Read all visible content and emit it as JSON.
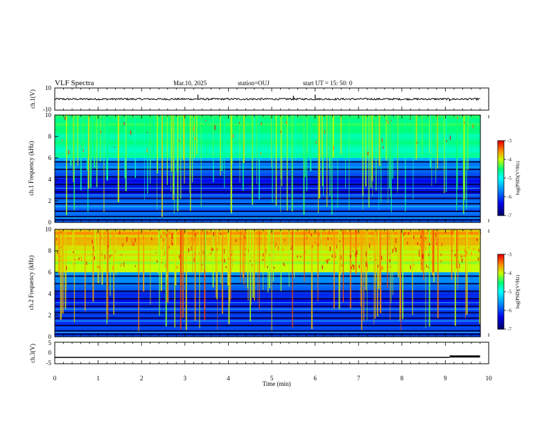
{
  "header": {
    "title": "VLF Spectra",
    "date": "Mar.10, 2025",
    "station": "station=OUJ",
    "start": "start UT =  15: 50: 0"
  },
  "chart_data": [
    {
      "type": "line",
      "panel": "ch.1 waveform",
      "ylabel": "ch.1(V)",
      "ylim": [
        -10,
        10
      ],
      "yticks": [
        "10",
        "-10"
      ],
      "xlim": [
        0,
        10
      ],
      "baseline": 0,
      "spikes": [
        {
          "x": 3.3,
          "y": 4
        },
        {
          "x": 5.5,
          "y": 3
        },
        {
          "x": 6.0,
          "y": 4
        },
        {
          "x": 9.1,
          "y": -2
        }
      ]
    },
    {
      "type": "heatmap",
      "panel": "ch.1 spectrogram",
      "ylabel": "ch.1 Frequency (kHz)",
      "ylim": [
        0,
        10
      ],
      "yticks": [
        "0",
        "2",
        "4",
        "6",
        "8",
        "10"
      ],
      "xlim": [
        0,
        10
      ],
      "colorbar": {
        "label": "log(PSD)(V²/Hz)",
        "range": [
          -7,
          -3
        ],
        "ticks": [
          "-3",
          "-4",
          "-5",
          "-6",
          "-7"
        ]
      }
    },
    {
      "type": "heatmap",
      "panel": "ch.2 spectrogram",
      "ylabel": "ch.2 Frequency (kHz)",
      "ylim": [
        0,
        10
      ],
      "yticks": [
        "0",
        "2",
        "4",
        "6",
        "8",
        "10"
      ],
      "xlim": [
        0,
        10
      ],
      "colorbar": {
        "label": "log(PSD)(V²/Hz)",
        "range": [
          -7,
          -3
        ],
        "ticks": [
          "-3",
          "-4",
          "-5",
          "-6",
          "-7"
        ]
      }
    },
    {
      "type": "line",
      "panel": "ch.3 waveform",
      "ylabel": "ch.3(V)",
      "ylim": [
        -5,
        5
      ],
      "yticks": [
        "5",
        "0",
        "-5"
      ],
      "xlim": [
        0,
        10
      ],
      "levels": [
        {
          "x0": 0,
          "x1": 9.1,
          "y": -2.0
        },
        {
          "x0": 9.1,
          "x1": 9.8,
          "y": -1.6
        }
      ]
    }
  ],
  "xaxis": {
    "label": "Time (min)",
    "ticks": [
      "0",
      "1",
      "2",
      "3",
      "4",
      "5",
      "6",
      "7",
      "8",
      "9",
      "10"
    ]
  },
  "colors": {
    "background": "#ffffff",
    "ink": "#000000",
    "colormap": [
      "#000080",
      "#0000ff",
      "#00a0ff",
      "#00ffff",
      "#00ff80",
      "#ffff00",
      "#ff8000",
      "#ff0000",
      "#ffffff"
    ]
  }
}
